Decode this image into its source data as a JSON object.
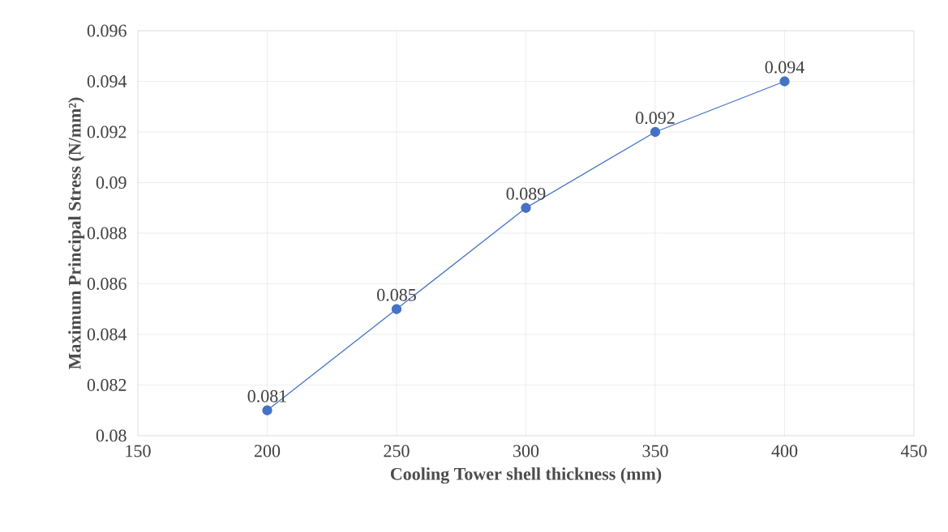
{
  "chart_data": {
    "type": "line",
    "xlabel": "Cooling Tower shell thickness (mm)",
    "ylabel": "Maximum Principal Stress (N/mm²)",
    "x": [
      200,
      250,
      300,
      350,
      400
    ],
    "values": [
      0.081,
      0.085,
      0.089,
      0.092,
      0.094
    ],
    "color": "#4472c4",
    "marker": "circle",
    "line_style": "solid",
    "data_labels": true,
    "grid": true,
    "xlim": [
      150,
      450
    ],
    "xticks": [
      150,
      200,
      250,
      300,
      350,
      400,
      450
    ],
    "ylim": [
      0.08,
      0.096
    ],
    "yticks": [
      0.08,
      0.082,
      0.084,
      0.086,
      0.088,
      0.09,
      0.092,
      0.094,
      0.096
    ]
  }
}
